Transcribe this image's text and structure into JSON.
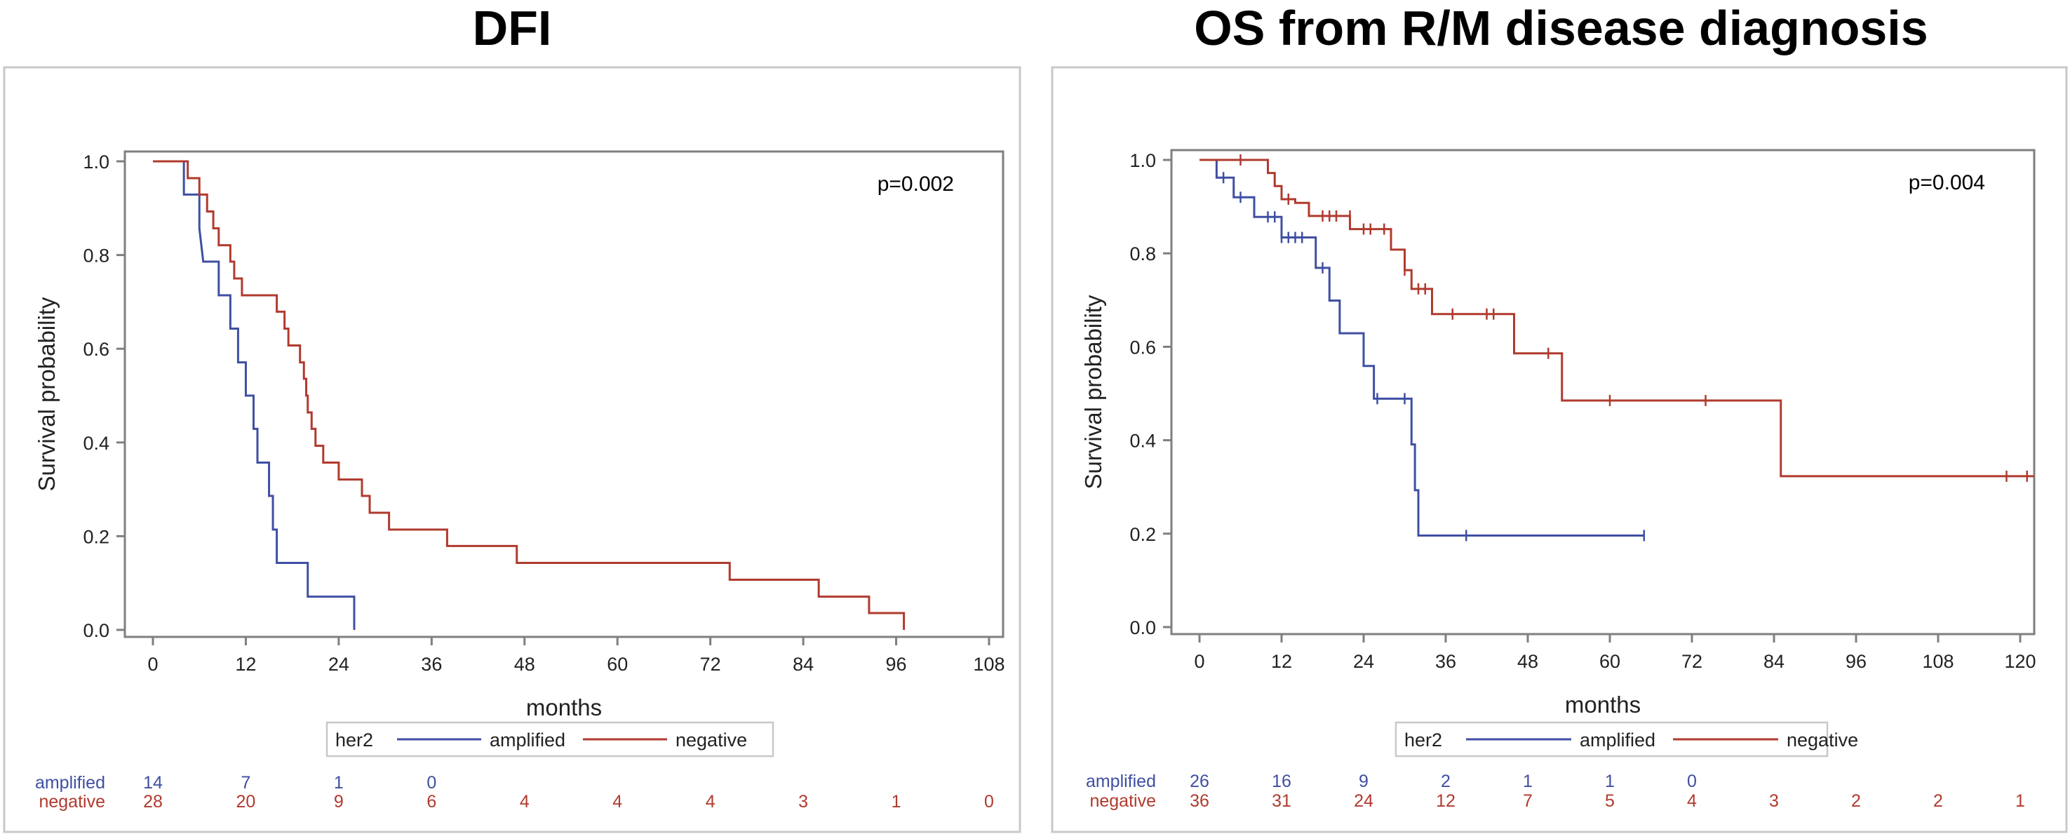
{
  "chart_data": [
    {
      "type": "line",
      "title": "DFI",
      "xlabel": "months",
      "ylabel": "Survival probability",
      "xlim": [
        0,
        108
      ],
      "ylim": [
        0,
        1
      ],
      "xticks": [
        "0",
        "12",
        "24",
        "36",
        "48",
        "60",
        "72",
        "84",
        "96",
        "108"
      ],
      "yticks": [
        "0.0",
        "0.2",
        "0.4",
        "0.6",
        "0.8",
        "1.0"
      ],
      "annotation": "p=0.002",
      "legend_title": "her2",
      "legend": [
        "amplified",
        "negative"
      ],
      "series": [
        {
          "name": "amplified",
          "color": "#3f4fa2",
          "steps": [
            [
              0,
              1.0
            ],
            [
              4,
              1.0
            ],
            [
              4,
              0.929
            ],
            [
              6,
              0.929
            ],
            [
              6,
              0.857
            ],
            [
              6.5,
              0.786
            ],
            [
              8.5,
              0.786
            ],
            [
              8.5,
              0.714
            ],
            [
              10,
              0.714
            ],
            [
              10,
              0.643
            ],
            [
              11,
              0.643
            ],
            [
              11,
              0.571
            ],
            [
              12,
              0.571
            ],
            [
              12,
              0.5
            ],
            [
              13,
              0.5
            ],
            [
              13,
              0.429
            ],
            [
              13.5,
              0.429
            ],
            [
              13.5,
              0.357
            ],
            [
              15,
              0.357
            ],
            [
              15,
              0.286
            ],
            [
              15.5,
              0.286
            ],
            [
              15.5,
              0.214
            ],
            [
              16,
              0.214
            ],
            [
              16,
              0.143
            ],
            [
              20,
              0.143
            ],
            [
              20,
              0.071
            ],
            [
              26,
              0.071
            ],
            [
              26,
              0.0
            ]
          ],
          "censors": []
        },
        {
          "name": "negative",
          "color": "#b03a2e",
          "steps": [
            [
              0,
              1.0
            ],
            [
              4.5,
              1.0
            ],
            [
              4.5,
              0.964
            ],
            [
              6,
              0.964
            ],
            [
              6,
              0.929
            ],
            [
              7,
              0.929
            ],
            [
              7,
              0.893
            ],
            [
              7.8,
              0.893
            ],
            [
              7.8,
              0.857
            ],
            [
              8.5,
              0.857
            ],
            [
              8.5,
              0.821
            ],
            [
              10,
              0.821
            ],
            [
              10,
              0.786
            ],
            [
              10.5,
              0.786
            ],
            [
              10.5,
              0.75
            ],
            [
              11.5,
              0.75
            ],
            [
              11.5,
              0.714
            ],
            [
              16,
              0.714
            ],
            [
              16,
              0.679
            ],
            [
              17,
              0.679
            ],
            [
              17,
              0.643
            ],
            [
              17.5,
              0.643
            ],
            [
              17.5,
              0.607
            ],
            [
              19,
              0.607
            ],
            [
              19,
              0.571
            ],
            [
              19.5,
              0.571
            ],
            [
              19.5,
              0.536
            ],
            [
              19.8,
              0.536
            ],
            [
              19.8,
              0.5
            ],
            [
              20,
              0.5
            ],
            [
              20,
              0.464
            ],
            [
              20.5,
              0.464
            ],
            [
              20.5,
              0.429
            ],
            [
              21,
              0.429
            ],
            [
              21,
              0.393
            ],
            [
              22,
              0.393
            ],
            [
              22,
              0.357
            ],
            [
              24,
              0.357
            ],
            [
              24,
              0.321
            ],
            [
              27,
              0.321
            ],
            [
              27,
              0.286
            ],
            [
              28,
              0.286
            ],
            [
              28,
              0.25
            ],
            [
              30.5,
              0.25
            ],
            [
              30.5,
              0.214
            ],
            [
              38,
              0.214
            ],
            [
              38,
              0.179
            ],
            [
              47,
              0.179
            ],
            [
              47,
              0.143
            ],
            [
              74.5,
              0.143
            ],
            [
              74.5,
              0.107
            ],
            [
              86,
              0.107
            ],
            [
              86,
              0.071
            ],
            [
              92.5,
              0.071
            ],
            [
              92.5,
              0.036
            ],
            [
              97,
              0.036
            ],
            [
              97,
              0.0
            ]
          ],
          "censors": []
        }
      ],
      "at_risk": {
        "times": [
          0,
          12,
          24,
          36,
          48,
          60,
          72,
          84,
          96,
          108
        ],
        "amplified": [
          "14",
          "7",
          "1",
          "0"
        ],
        "negative": [
          "28",
          "20",
          "9",
          "6",
          "4",
          "4",
          "4",
          "3",
          "1",
          "0"
        ]
      }
    },
    {
      "type": "line",
      "title": "OS from R/M disease diagnosis",
      "xlabel": "months",
      "ylabel": "Survival probability",
      "xlim": [
        0,
        120
      ],
      "ylim": [
        0,
        1
      ],
      "xticks": [
        "0",
        "12",
        "24",
        "36",
        "48",
        "60",
        "72",
        "84",
        "96",
        "108",
        "120"
      ],
      "yticks": [
        "0.0",
        "0.2",
        "0.4",
        "0.6",
        "0.8",
        "1.0"
      ],
      "annotation": "p=0.004",
      "legend_title": "her2",
      "legend": [
        "amplified",
        "negative"
      ],
      "series": [
        {
          "name": "amplified",
          "color": "#3f4fa2",
          "steps": [
            [
              0,
              1.0
            ],
            [
              2.5,
              1.0
            ],
            [
              2.5,
              0.962
            ],
            [
              5,
              0.962
            ],
            [
              5,
              0.92
            ],
            [
              8,
              0.92
            ],
            [
              8,
              0.878
            ],
            [
              12,
              0.878
            ],
            [
              12,
              0.834
            ],
            [
              17,
              0.834
            ],
            [
              17,
              0.769
            ],
            [
              19,
              0.769
            ],
            [
              19,
              0.699
            ],
            [
              20.5,
              0.699
            ],
            [
              20.5,
              0.629
            ],
            [
              24,
              0.629
            ],
            [
              24,
              0.559
            ],
            [
              25.5,
              0.559
            ],
            [
              25.5,
              0.489
            ],
            [
              31,
              0.489
            ],
            [
              31,
              0.391
            ],
            [
              31.5,
              0.391
            ],
            [
              31.5,
              0.293
            ],
            [
              32,
              0.293
            ],
            [
              32,
              0.196
            ],
            [
              65,
              0.196
            ]
          ],
          "censors": [
            [
              3.5,
              0.962
            ],
            [
              6,
              0.92
            ],
            [
              10,
              0.878
            ],
            [
              11,
              0.878
            ],
            [
              12,
              0.834
            ],
            [
              13,
              0.834
            ],
            [
              14,
              0.834
            ],
            [
              15,
              0.834
            ],
            [
              18,
              0.769
            ],
            [
              26,
              0.489
            ],
            [
              30,
              0.489
            ],
            [
              39,
              0.196
            ],
            [
              65,
              0.196
            ]
          ]
        },
        {
          "name": "negative",
          "color": "#b03a2e",
          "steps": [
            [
              0,
              1.0
            ],
            [
              10,
              1.0
            ],
            [
              10,
              0.972
            ],
            [
              11,
              0.972
            ],
            [
              11,
              0.944
            ],
            [
              12,
              0.944
            ],
            [
              12,
              0.916
            ],
            [
              14,
              0.916
            ],
            [
              14,
              0.908
            ],
            [
              16,
              0.908
            ],
            [
              16,
              0.88
            ],
            [
              22,
              0.88
            ],
            [
              22,
              0.852
            ],
            [
              28,
              0.852
            ],
            [
              28,
              0.808
            ],
            [
              30,
              0.808
            ],
            [
              30,
              0.764
            ],
            [
              31,
              0.764
            ],
            [
              31,
              0.724
            ],
            [
              34,
              0.724
            ],
            [
              34,
              0.67
            ],
            [
              46,
              0.67
            ],
            [
              46,
              0.586
            ],
            [
              53,
              0.586
            ],
            [
              53,
              0.485
            ],
            [
              85,
              0.485
            ],
            [
              85,
              0.323
            ],
            [
              122,
              0.323
            ]
          ],
          "censors": [
            [
              6,
              1.0
            ],
            [
              13,
              0.916
            ],
            [
              18,
              0.88
            ],
            [
              19,
              0.88
            ],
            [
              20,
              0.88
            ],
            [
              22,
              0.88
            ],
            [
              24,
              0.852
            ],
            [
              25,
              0.852
            ],
            [
              27,
              0.852
            ],
            [
              30,
              0.764
            ],
            [
              32,
              0.724
            ],
            [
              33,
              0.724
            ],
            [
              37,
              0.67
            ],
            [
              42,
              0.67
            ],
            [
              43,
              0.67
            ],
            [
              51,
              0.586
            ],
            [
              60,
              0.485
            ],
            [
              74,
              0.485
            ],
            [
              118,
              0.323
            ],
            [
              121,
              0.323
            ]
          ]
        }
      ],
      "at_risk": {
        "times": [
          0,
          12,
          24,
          36,
          48,
          60,
          72,
          84,
          96,
          108,
          120
        ],
        "amplified": [
          "26",
          "16",
          "9",
          "2",
          "1",
          "1",
          "0"
        ],
        "negative": [
          "36",
          "31",
          "24",
          "12",
          "7",
          "5",
          "4",
          "3",
          "2",
          "2",
          "1"
        ]
      }
    }
  ],
  "atrisk_labels": {
    "amplified": "amplified",
    "negative": "negative"
  },
  "colors": {
    "amplified": "#3f4fa2",
    "negative": "#b03a2e",
    "axis": "#7f7f7f",
    "panel_border": "#c8c8c8",
    "text": "#000000"
  }
}
